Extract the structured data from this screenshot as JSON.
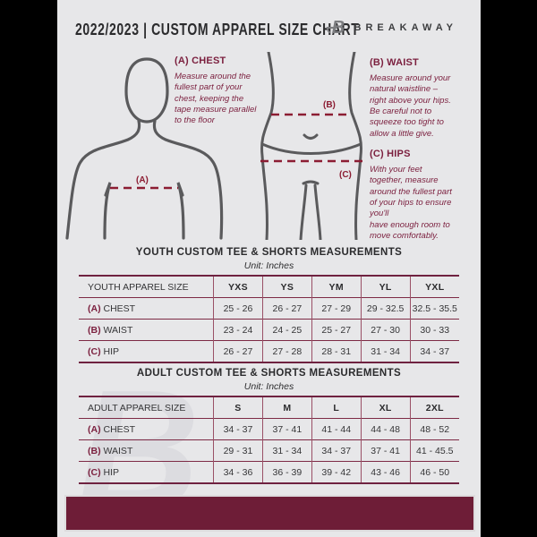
{
  "header": {
    "title": "2022/2023  |  CUSTOM APPAREL SIZE CHART",
    "brand": "BREAKAWAY"
  },
  "instructions": {
    "chest": {
      "label": "(A) CHEST",
      "text": "Measure around the\nfullest part of your\nchest, keeping the\ntape measure parallel\nto the floor"
    },
    "waist": {
      "label": "(B) WAIST",
      "text": "Measure around your\nnatural waistline –\nright above your hips.\nBe careful not to\nsqueeze too tight to\nallow a little give."
    },
    "hips": {
      "label": "(C) HIPS",
      "text": "With your feet\ntogether, measure\naround the fullest part\nof your hips to ensure\nyou'll\nhave enough room to\nmove comfortably."
    }
  },
  "diagram": {
    "chest_tag": "(A)",
    "waist_tag": "(B)",
    "hips_tag": "(C)"
  },
  "youth": {
    "title": "YOUTH CUSTOM TEE & SHORTS MEASUREMENTS",
    "unit": "Unit: Inches",
    "columns": [
      "YOUTH APPAREL SIZE",
      "YXS",
      "YS",
      "YM",
      "YL",
      "YXL"
    ],
    "rows": [
      {
        "prefix": "(A)",
        "label": "CHEST",
        "values": [
          "25 - 26",
          "26 - 27",
          "27 - 29",
          "29 - 32.5",
          "32.5 - 35.5"
        ]
      },
      {
        "prefix": "(B)",
        "label": "WAIST",
        "values": [
          "23 - 24",
          "24 - 25",
          "25 - 27",
          "27 - 30",
          "30 - 33"
        ]
      },
      {
        "prefix": "(C)",
        "label": "HIP",
        "values": [
          "26 - 27",
          "27 - 28",
          "28 - 31",
          "31 - 34",
          "34 - 37"
        ]
      }
    ]
  },
  "adult": {
    "title": "ADULT CUSTOM TEE & SHORTS MEASUREMENTS",
    "unit": "Unit: Inches",
    "columns": [
      "ADULT APPAREL SIZE",
      "S",
      "M",
      "L",
      "XL",
      "2XL"
    ],
    "rows": [
      {
        "prefix": "(A)",
        "label": "CHEST",
        "values": [
          "34 - 37",
          "37 - 41",
          "41 - 44",
          "44 - 48",
          "48 - 52"
        ]
      },
      {
        "prefix": "(B)",
        "label": "WAIST",
        "values": [
          "29 - 31",
          "31 - 34",
          "34 - 37",
          "37 - 41",
          "41 - 45.5"
        ]
      },
      {
        "prefix": "(C)",
        "label": "HIP",
        "values": [
          "34 - 36",
          "36 - 39",
          "39 - 42",
          "43 - 46",
          "46 - 50"
        ]
      }
    ]
  },
  "watermark_letter": "B",
  "colors": {
    "accent_maroon": "#7b1f3e",
    "dashed_line": "#8c1d33",
    "footer_bar": "#6e1d37",
    "table_border": "#7d2a45",
    "document_background": "#e7e7e9",
    "figure_outline": "#5a5a5c",
    "page_background": "#000000"
  }
}
